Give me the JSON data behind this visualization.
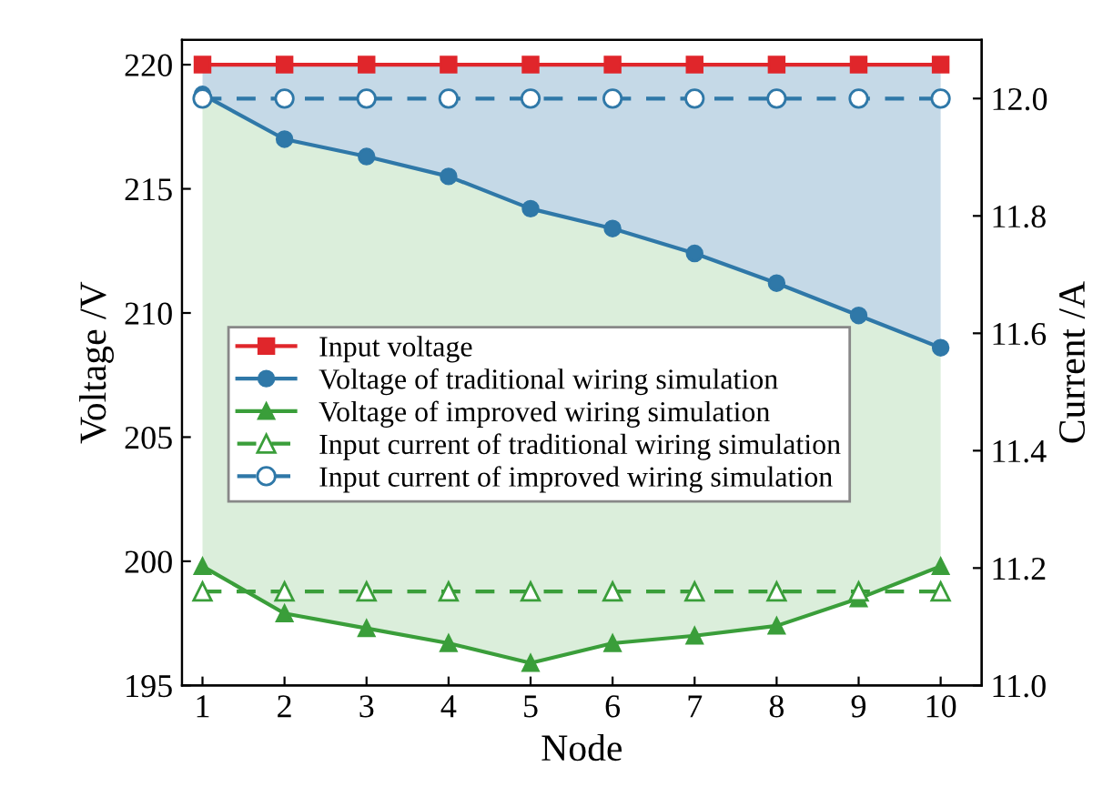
{
  "chart_data": {
    "type": "line",
    "xlabel": "Node",
    "ylabel": "Voltage /V",
    "y2label": "Current /A",
    "x": [
      1,
      2,
      3,
      4,
      5,
      6,
      7,
      8,
      9,
      10
    ],
    "series": [
      {
        "name": "Input voltage",
        "color": "#e0262b",
        "marker": "square",
        "line_style": "solid",
        "values": [
          220,
          220,
          220,
          220,
          220,
          220,
          220,
          220,
          220,
          220
        ]
      },
      {
        "name": "Voltage of traditional wiring simulation",
        "color": "#2f78a8",
        "marker": "circle",
        "line_style": "solid",
        "values": [
          218.8,
          217.0,
          216.3,
          215.5,
          214.2,
          213.4,
          212.4,
          211.2,
          209.9,
          208.6
        ],
        "lower": [
          218.8,
          217.0,
          216.3,
          215.5,
          214.2,
          213.4,
          212.4,
          211.2,
          209.9,
          208.6
        ],
        "upper": [
          220,
          220,
          220,
          220,
          220,
          220,
          220,
          220,
          220,
          220
        ]
      },
      {
        "name": "Voltage of improved wiring simulation",
        "color": "#3a9e3a",
        "marker": "triangle",
        "line_style": "solid",
        "values": [
          199.8,
          197.9,
          197.3,
          196.7,
          195.9,
          196.7,
          197.0,
          197.4,
          198.5,
          199.8
        ],
        "lower": [
          199.8,
          197.9,
          197.3,
          196.7,
          195.9,
          196.7,
          197.0,
          197.4,
          198.5,
          199.8
        ],
        "upper": [
          218.8,
          217.0,
          216.3,
          215.5,
          214.2,
          213.4,
          212.4,
          211.2,
          209.9,
          208.6
        ]
      },
      {
        "name": "Input current of traditional wiring simulation",
        "axis": "y2",
        "color": "#3a9e3a",
        "marker": "triangle",
        "line_style": "dashed",
        "values": [
          11.16,
          11.16,
          11.16,
          11.16,
          11.16,
          11.16,
          11.16,
          11.16,
          11.16,
          11.16
        ]
      },
      {
        "name": "Input current of improved wiring simulation",
        "axis": "y2",
        "color": "#2f78a8",
        "marker": "circle",
        "line_style": "dashed",
        "values": [
          12.0,
          12.0,
          12.0,
          12.0,
          12.0,
          12.0,
          12.0,
          12.0,
          12.0,
          12.0
        ]
      }
    ],
    "xlim": [
      0.75,
      10.5
    ],
    "xticks": [
      1,
      2,
      3,
      4,
      5,
      6,
      7,
      8,
      9,
      10
    ],
    "ylim": [
      195,
      221
    ],
    "yticks": [
      195,
      200,
      205,
      210,
      215,
      220
    ],
    "y2lim": [
      11.0,
      12.1
    ],
    "y2ticks": [
      {
        "value": 11.0,
        "label": "11.0"
      },
      11.2,
      11.4,
      11.6,
      11.8,
      {
        "value": 12.0,
        "label": "12.0"
      }
    ],
    "grid": false,
    "legend": "center left"
  }
}
